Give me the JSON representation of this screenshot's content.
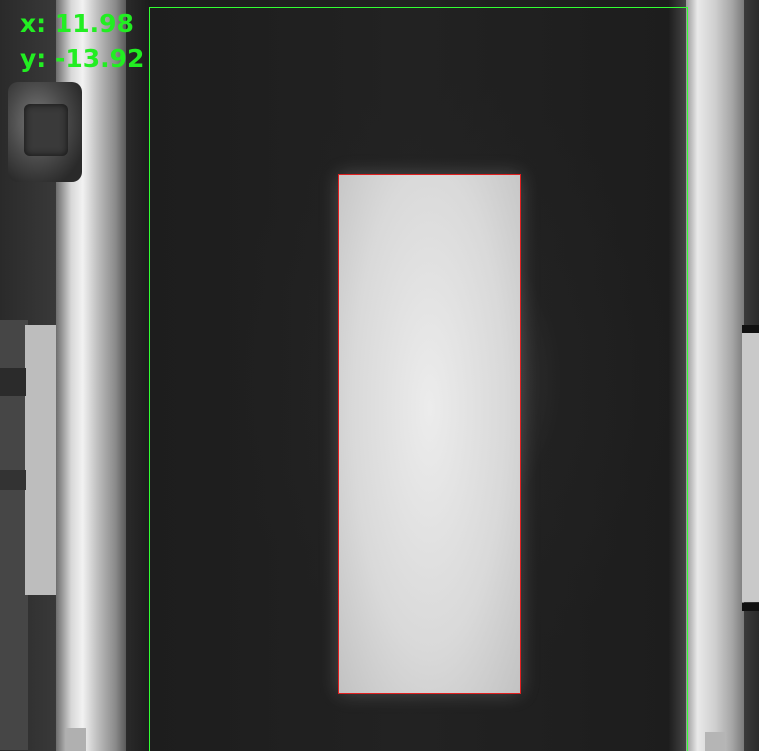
{
  "overlay": {
    "x_label": "x: 11.98",
    "y_label": "y: -13.92",
    "x_value": 11.98,
    "y_value": -13.92
  },
  "colors": {
    "readout_text": "#22ee22",
    "roi_box": "#33ff33",
    "detection_box": "#e02020"
  }
}
